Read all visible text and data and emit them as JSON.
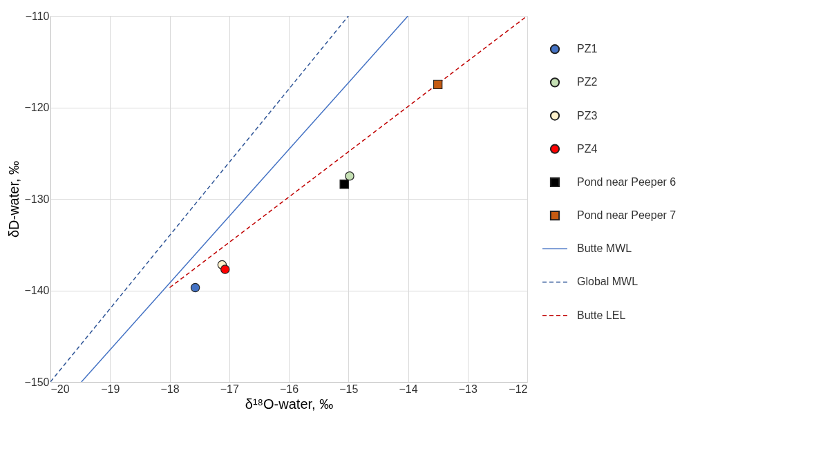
{
  "chart_data": {
    "type": "scatter",
    "xlabel": "δ¹⁸O-water, ‰",
    "ylabel": "δD-water, ‰",
    "xlim": [
      -20,
      -12
    ],
    "xticks": [
      -20,
      -19,
      -18,
      -17,
      -16,
      -15,
      -14,
      -13,
      -12
    ],
    "ylim": [
      -150,
      -110
    ],
    "yticks": [
      -150,
      -140,
      -130,
      -120,
      -110
    ],
    "grid": true,
    "legend": "right",
    "series": [
      {
        "name": "PZ1",
        "marker": "circle",
        "color": "#4472c4",
        "x": [
          -17.57
        ],
        "values": [
          -139.7
        ]
      },
      {
        "name": "PZ2",
        "marker": "circle",
        "color": "#c5e0b4",
        "x": [
          -14.98
        ],
        "values": [
          -127.5
        ]
      },
      {
        "name": "PZ3",
        "marker": "circle",
        "color": "#fff2cc",
        "x": [
          -17.12
        ],
        "values": [
          -137.2
        ]
      },
      {
        "name": "PZ4",
        "marker": "circle",
        "color": "#ff0000",
        "x": [
          -17.07
        ],
        "values": [
          -137.7
        ]
      },
      {
        "name": "Pond near Peeper 6",
        "marker": "square",
        "color": "#000000",
        "x": [
          -15.07
        ],
        "values": [
          -128.4
        ]
      },
      {
        "name": "Pond near Peeper 7",
        "marker": "square",
        "color": "#c55a11",
        "x": [
          -13.5
        ],
        "values": [
          -117.5
        ]
      },
      {
        "name": "Butte MWL",
        "type": "line",
        "line_style": "solid",
        "color": "#4472c4",
        "x": [
          -19.48,
          -14.0
        ],
        "values": [
          -150,
          -110
        ]
      },
      {
        "name": "Global MWL",
        "type": "line",
        "line_style": "dashed",
        "color": "#2f5597",
        "x": [
          -20,
          -15
        ],
        "values": [
          -150,
          -110
        ]
      },
      {
        "name": "Butte LEL",
        "type": "line",
        "line_style": "dashed",
        "color": "#c00000",
        "x": [
          -18.0,
          -12.0
        ],
        "values": [
          -139.7,
          -110
        ]
      }
    ]
  }
}
